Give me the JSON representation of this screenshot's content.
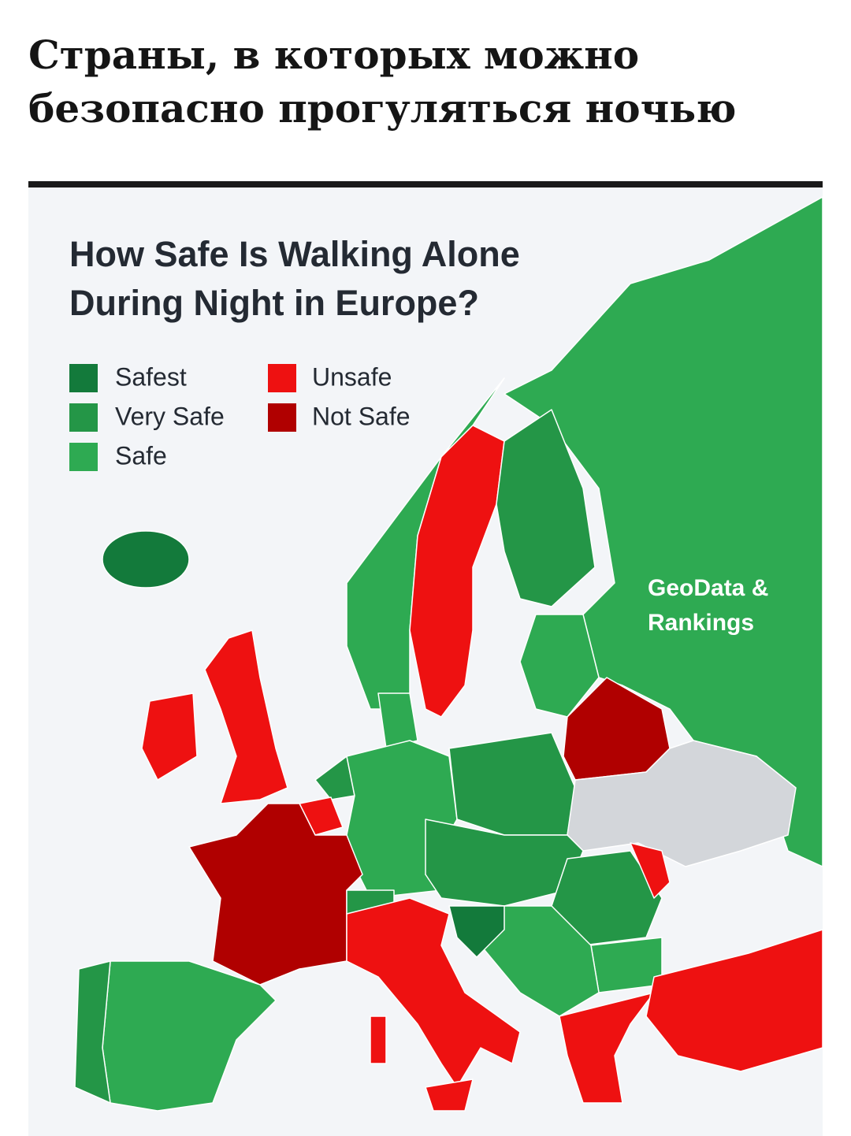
{
  "header": {
    "title": "Страны, в которых можно безопасно прогуляться ночью"
  },
  "map": {
    "title": [
      "How Safe Is Walking Alone",
      "During Night in Europe?"
    ],
    "legend": [
      "Safest",
      "Very Safe",
      "Safe",
      "Unsafe",
      "Not Safe"
    ],
    "watermark": [
      "GeoData &",
      "Rankings"
    ]
  }
}
